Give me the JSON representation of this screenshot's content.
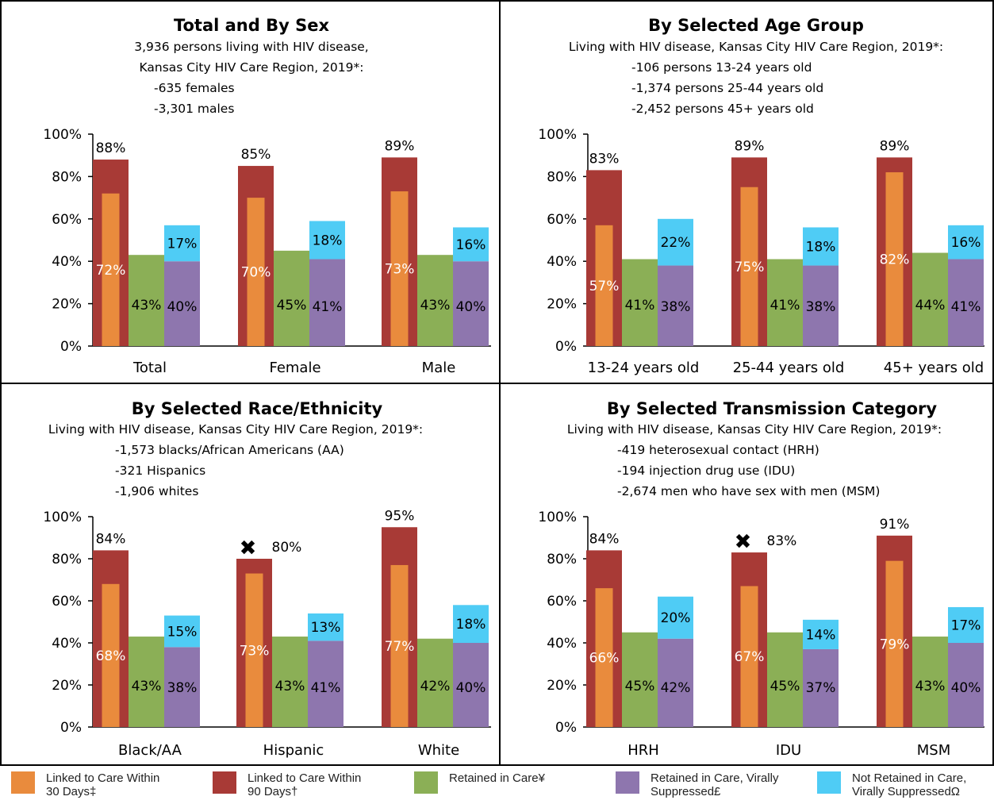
{
  "colors": {
    "linked30": "#E98B3D",
    "linked90": "#A83A36",
    "retained": "#8BAF56",
    "suppressed": "#8E76AE",
    "notRetained": "#4FCCF5"
  },
  "legend": [
    {
      "key": "linked30",
      "lines": [
        "Linked to Care Within",
        "30 Days‡"
      ]
    },
    {
      "key": "linked90",
      "lines": [
        "Linked to Care Within",
        "90 Days†"
      ]
    },
    {
      "key": "retained",
      "lines": [
        "Retained in Care¥"
      ]
    },
    {
      "key": "suppressed",
      "lines": [
        "Retained in Care, Virally",
        "Suppressed£"
      ]
    },
    {
      "key": "notRetained",
      "lines": [
        "Not Retained in Care,",
        "Virally SuppressedΩ"
      ]
    }
  ],
  "chart_data": [
    {
      "type": "bar",
      "title": "Total and By Sex",
      "subtitle_lines": [
        "3,936 persons living with HIV disease,",
        "Kansas City HIV Care Region, 2019*:",
        "-635 females",
        "-3,301 males"
      ],
      "categories": [
        "Total",
        "Female",
        "Male"
      ],
      "ylim": [
        0,
        100
      ],
      "yticks": [
        "0%",
        "20%",
        "40%",
        "60%",
        "80%",
        "100%"
      ],
      "linked90": [
        88,
        85,
        89
      ],
      "linked30": [
        72,
        70,
        73
      ],
      "retained": [
        43,
        45,
        43
      ],
      "suppressed": [
        40,
        41,
        40
      ],
      "not_retained_suppressed": [
        17,
        18,
        16
      ],
      "markers": [
        false,
        false,
        false
      ]
    },
    {
      "type": "bar",
      "title": "By Selected Age Group",
      "subtitle_lines": [
        "Living with HIV disease, Kansas City HIV Care Region, 2019*:",
        "-106 persons 13-24 years old",
        "-1,374 persons 25-44 years old",
        "-2,452 persons 45+ years old"
      ],
      "categories": [
        "13-24 years old",
        "25-44 years old",
        "45+ years old"
      ],
      "ylim": [
        0,
        100
      ],
      "yticks": [
        "0%",
        "20%",
        "40%",
        "60%",
        "80%",
        "100%"
      ],
      "linked90": [
        83,
        89,
        89
      ],
      "linked30": [
        57,
        75,
        82
      ],
      "retained": [
        41,
        41,
        44
      ],
      "suppressed": [
        38,
        38,
        41
      ],
      "not_retained_suppressed": [
        22,
        18,
        16
      ],
      "markers": [
        false,
        false,
        false
      ]
    },
    {
      "type": "bar",
      "title": "By Selected Race/Ethnicity",
      "subtitle_lines": [
        "Living with HIV disease, Kansas City HIV Care Region, 2019*:",
        "-1,573 blacks/African Americans (AA)",
        "-321 Hispanics",
        "-1,906 whites"
      ],
      "categories": [
        "Black/AA",
        "Hispanic",
        "White"
      ],
      "ylim": [
        0,
        100
      ],
      "yticks": [
        "0%",
        "20%",
        "40%",
        "60%",
        "80%",
        "100%"
      ],
      "linked90": [
        84,
        80,
        95
      ],
      "linked30": [
        68,
        73,
        77
      ],
      "retained": [
        43,
        43,
        42
      ],
      "suppressed": [
        38,
        41,
        40
      ],
      "not_retained_suppressed": [
        15,
        13,
        18
      ],
      "markers": [
        false,
        true,
        false
      ],
      "marker_symbol": "✖"
    },
    {
      "type": "bar",
      "title": "By Selected Transmission Category",
      "subtitle_lines": [
        "Living with HIV disease, Kansas City HIV Care Region, 2019*:",
        "-419 heterosexual contact (HRH)",
        "-194 injection drug use (IDU)",
        "-2,674 men who have sex with men (MSM)"
      ],
      "categories": [
        "HRH",
        "IDU",
        "MSM"
      ],
      "ylim": [
        0,
        100
      ],
      "yticks": [
        "0%",
        "20%",
        "40%",
        "60%",
        "80%",
        "100%"
      ],
      "linked90": [
        84,
        83,
        91
      ],
      "linked30": [
        66,
        67,
        79
      ],
      "retained": [
        45,
        45,
        43
      ],
      "suppressed": [
        42,
        37,
        40
      ],
      "not_retained_suppressed": [
        20,
        14,
        17
      ],
      "markers": [
        false,
        true,
        false
      ],
      "marker_symbol": "✖"
    }
  ]
}
